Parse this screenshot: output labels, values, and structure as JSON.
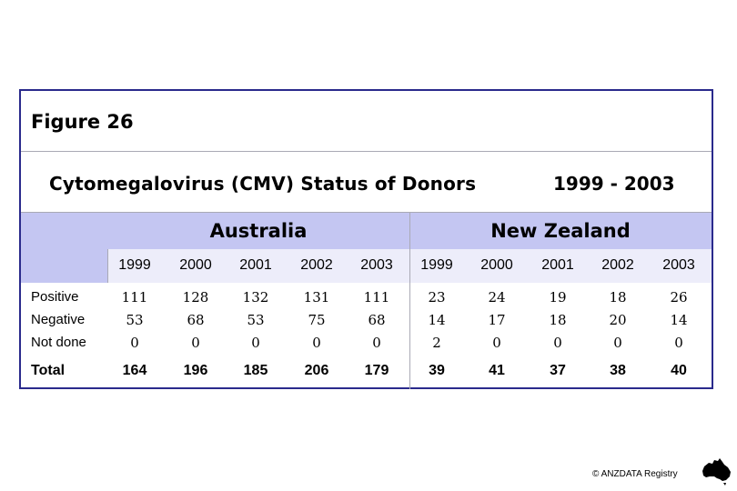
{
  "figure_label": "Figure 26",
  "title": "Cytomegalovirus (CMV) Status of Donors",
  "year_range": "1999 - 2003",
  "countries": [
    "Australia",
    "New Zealand"
  ],
  "years": [
    "1999",
    "2000",
    "2001",
    "2002",
    "2003",
    "1999",
    "2000",
    "2001",
    "2002",
    "2003"
  ],
  "rows": [
    {
      "label": "Positive",
      "values": [
        "111",
        "128",
        "132",
        "131",
        "111",
        "23",
        "24",
        "19",
        "18",
        "26"
      ]
    },
    {
      "label": "Negative",
      "values": [
        "53",
        "68",
        "53",
        "75",
        "68",
        "14",
        "17",
        "18",
        "20",
        "14"
      ]
    },
    {
      "label": "Not done",
      "values": [
        "0",
        "0",
        "0",
        "0",
        "0",
        "2",
        "0",
        "0",
        "0",
        "0"
      ]
    }
  ],
  "total": {
    "label": "Total",
    "values": [
      "164",
      "196",
      "185",
      "206",
      "179",
      "39",
      "41",
      "37",
      "38",
      "40"
    ]
  },
  "credit": "© ANZDATA Registry",
  "colors": {
    "border": "#2a2a8c",
    "band": "#c4c6f2",
    "year_row": "#ededfa"
  }
}
